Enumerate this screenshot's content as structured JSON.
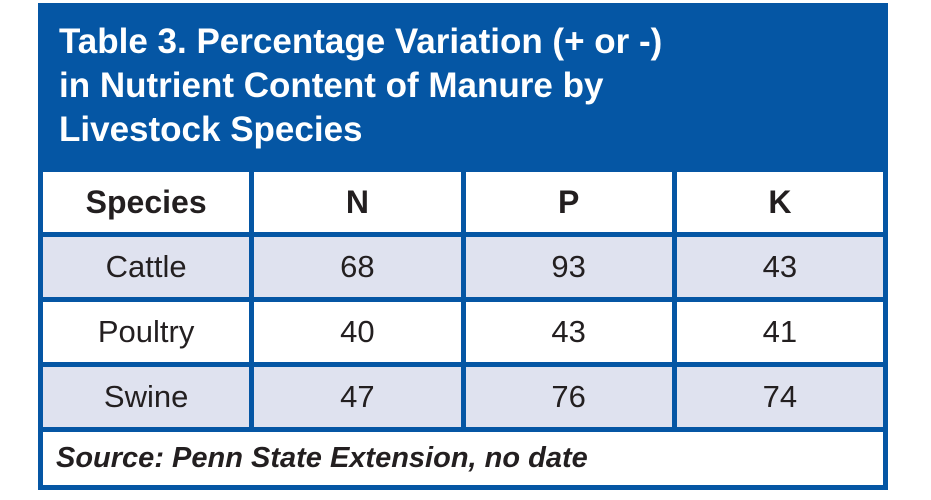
{
  "chart_data": {
    "type": "table",
    "title": "Table 3. Percentage Variation (+ or -) in Nutrient Content of Manure by Livestock Species",
    "title_lines": [
      "Table 3. Percentage Variation (+ or -)",
      "in Nutrient Content of Manure by",
      "Livestock Species"
    ],
    "columns": [
      "Species",
      "N",
      "P",
      "K"
    ],
    "rows": [
      {
        "cells": [
          "Cattle",
          "68",
          "93",
          "43"
        ],
        "shaded": true
      },
      {
        "cells": [
          "Poultry",
          "40",
          "43",
          "41"
        ],
        "shaded": false
      },
      {
        "cells": [
          "Swine",
          "47",
          "76",
          "74"
        ],
        "shaded": true
      }
    ],
    "source": "Source: Penn State Extension, no date"
  },
  "colors": {
    "header_blue": "#0556a4",
    "border_blue": "#0556a4",
    "shaded_row": "#dfe2ef",
    "title_text": "#ffffff",
    "body_text": "#231f20",
    "page_background": "#ffffff"
  }
}
